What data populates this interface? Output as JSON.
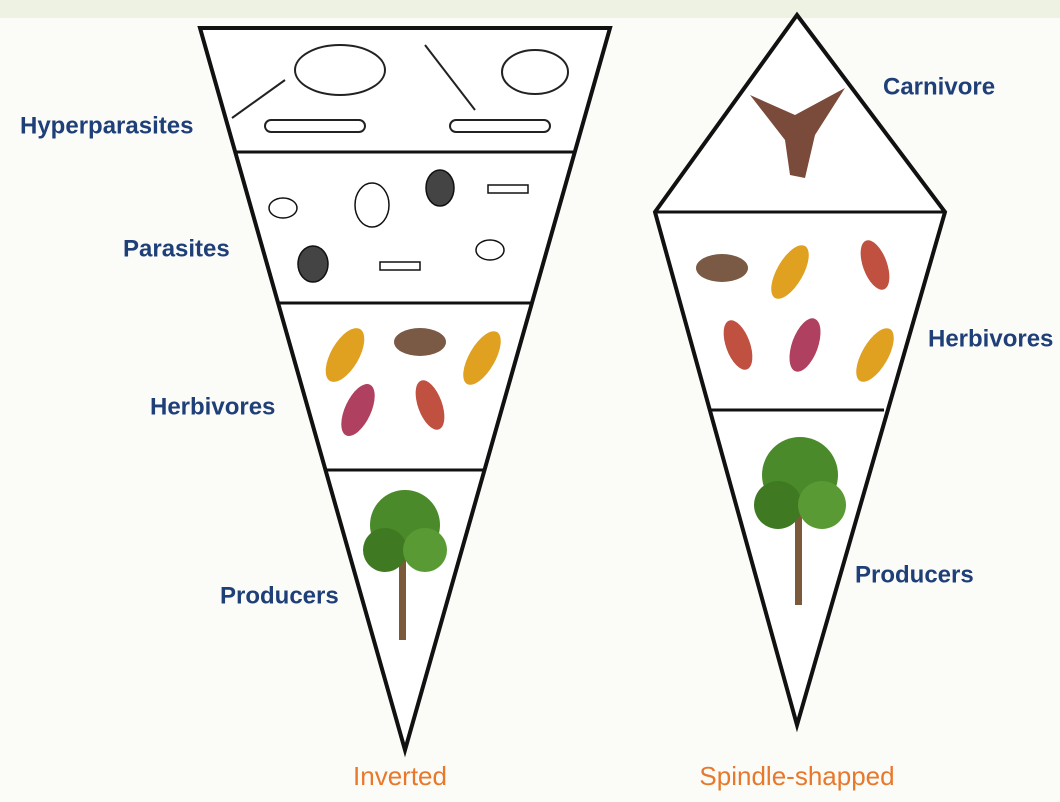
{
  "pyramids": [
    {
      "caption": "Inverted",
      "levels": [
        "Hyperparasites",
        "Parasites",
        "Herbivores",
        "Producers"
      ]
    },
    {
      "caption": "Spindle-shapped",
      "levels": [
        "Carnivore",
        "Herbivores",
        "Producers"
      ]
    }
  ]
}
